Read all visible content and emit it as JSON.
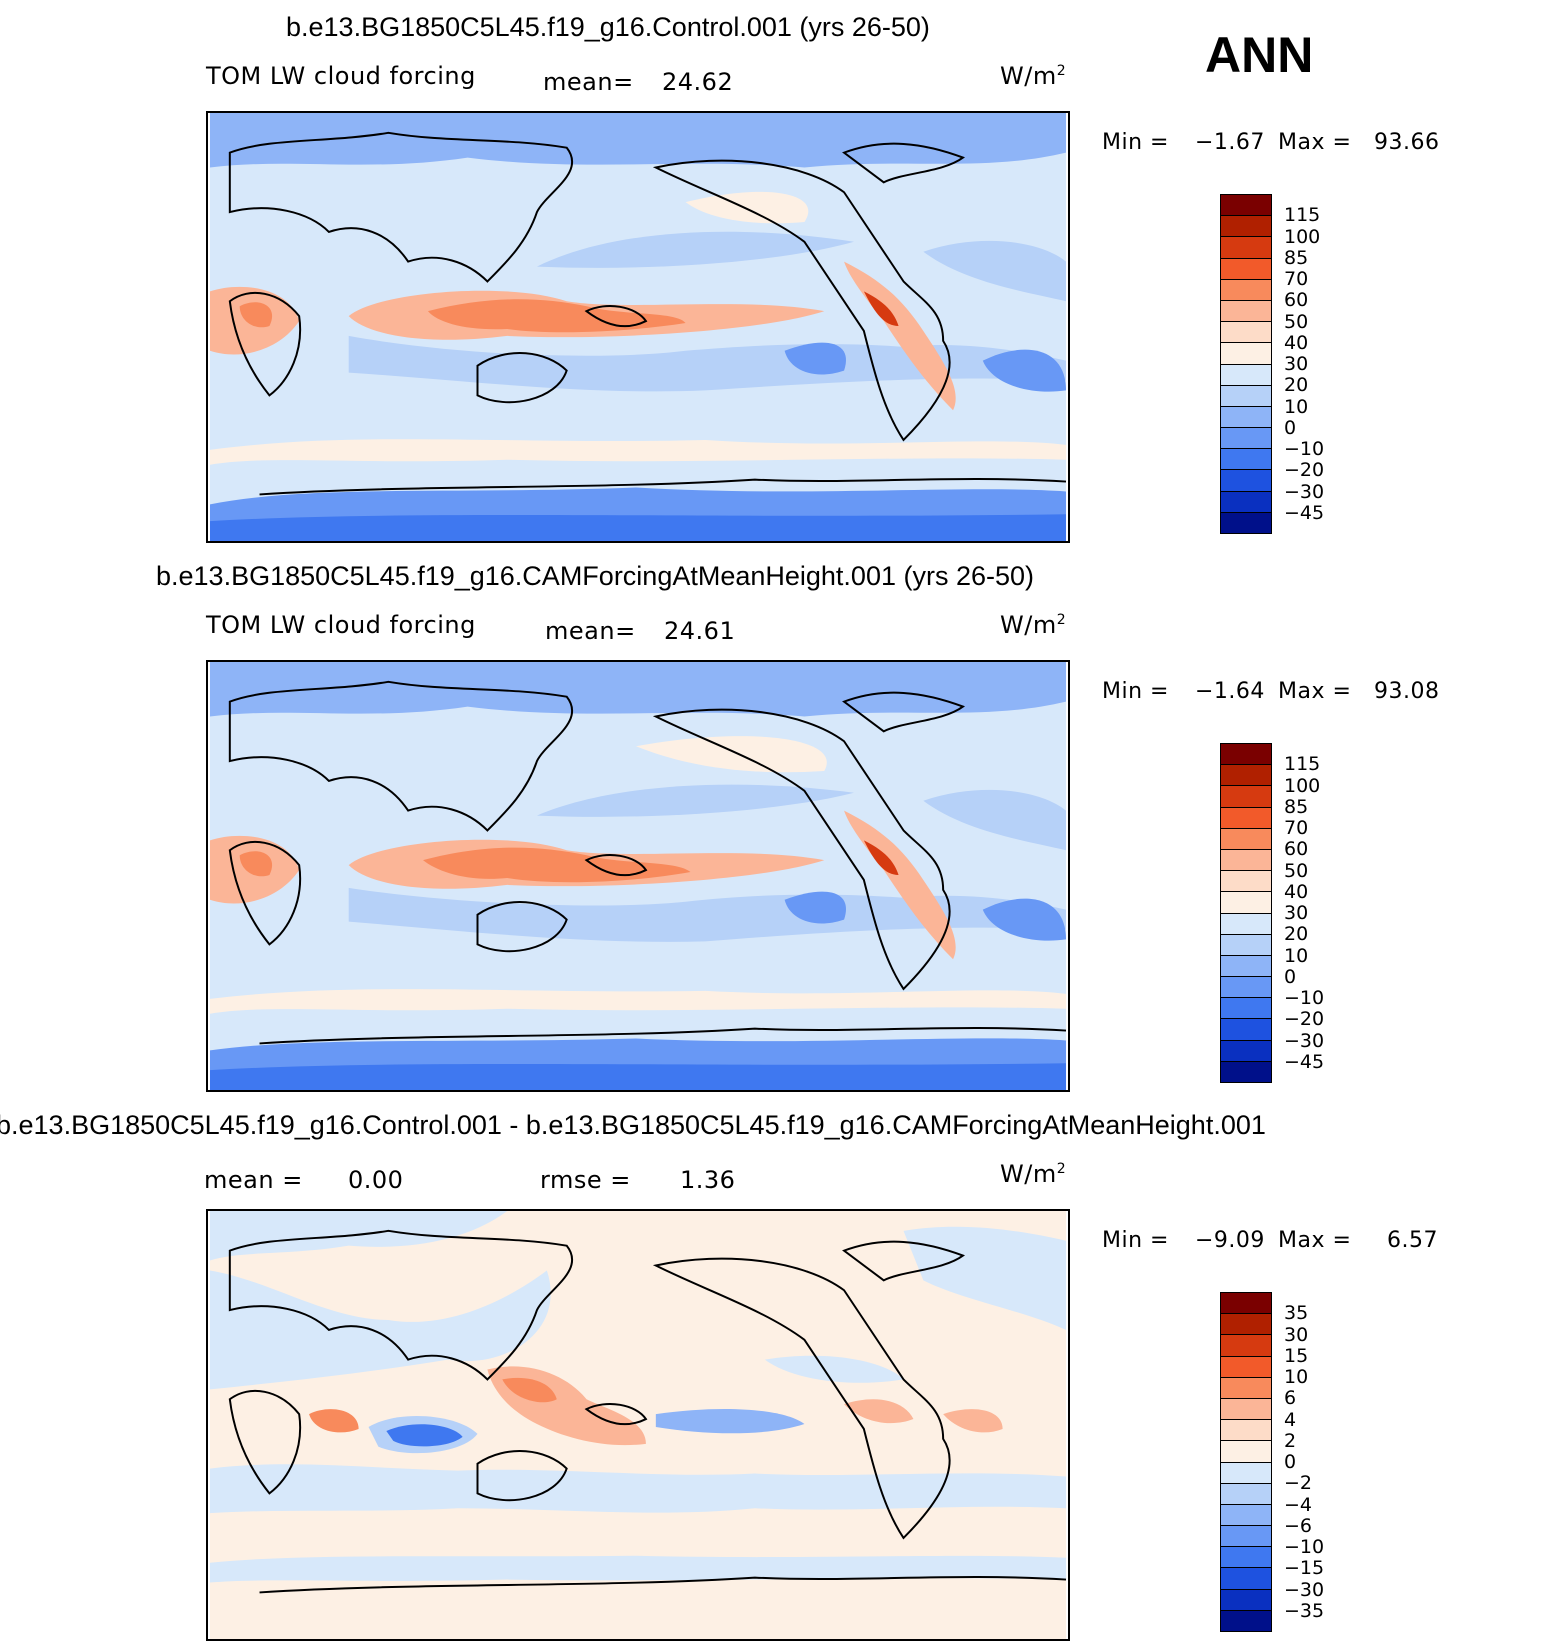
{
  "season": "ANN",
  "unit_label": "W/m",
  "unit_sup": "2",
  "panels": [
    {
      "title": "b.e13.BG1850C5L45.f19_g16.Control.001 (yrs 26-50)",
      "variable": "TOM LW cloud forcing",
      "stat1_label": "mean=",
      "stat1_value": "24.62",
      "stat2_label": "",
      "stat2_value": "",
      "min_label": "Min =",
      "min_value": "−1.67",
      "max_label": "Max =",
      "max_value": "93.66",
      "levels": [
        "115",
        "100",
        "85",
        "70",
        "60",
        "50",
        "40",
        "30",
        "20",
        "10",
        "0",
        "−10",
        "−20",
        "−30",
        "−45"
      ],
      "colors": [
        "#7a0000",
        "#b02000",
        "#d63a10",
        "#f25a2a",
        "#f88a5c",
        "#fbb597",
        "#fddcc8",
        "#fdf0e4",
        "#d7e8fa",
        "#b6d1f8",
        "#8eb4f7",
        "#6898f5",
        "#3f78f0",
        "#1e52e0",
        "#0a30c0",
        "#00108a"
      ]
    },
    {
      "title": "b.e13.BG1850C5L45.f19_g16.CAMForcingAtMeanHeight.001 (yrs 26-50)",
      "variable": "TOM LW cloud forcing",
      "stat1_label": "mean=",
      "stat1_value": "24.61",
      "stat2_label": "",
      "stat2_value": "",
      "min_label": "Min =",
      "min_value": "−1.64",
      "max_label": "Max =",
      "max_value": "93.08",
      "levels": [
        "115",
        "100",
        "85",
        "70",
        "60",
        "50",
        "40",
        "30",
        "20",
        "10",
        "0",
        "−10",
        "−20",
        "−30",
        "−45"
      ],
      "colors": [
        "#7a0000",
        "#b02000",
        "#d63a10",
        "#f25a2a",
        "#f88a5c",
        "#fbb597",
        "#fddcc8",
        "#fdf0e4",
        "#d7e8fa",
        "#b6d1f8",
        "#8eb4f7",
        "#6898f5",
        "#3f78f0",
        "#1e52e0",
        "#0a30c0",
        "#00108a"
      ]
    },
    {
      "title": "b.e13.BG1850C5L45.f19_g16.Control.001 - b.e13.BG1850C5L45.f19_g16.CAMForcingAtMeanHeight.001",
      "variable": "",
      "stat1_label": "mean =",
      "stat1_value": "0.00",
      "stat2_label": "rmse =",
      "stat2_value": "1.36",
      "min_label": "Min =",
      "min_value": "−9.09",
      "max_label": "Max =",
      "max_value": "6.57",
      "levels": [
        "35",
        "30",
        "15",
        "10",
        "6",
        "4",
        "2",
        "0",
        "−2",
        "−4",
        "−6",
        "−10",
        "−15",
        "−30",
        "−35"
      ],
      "colors": [
        "#7a0000",
        "#b02000",
        "#d63a10",
        "#f25a2a",
        "#f88a5c",
        "#fbb597",
        "#fddcc8",
        "#fdf0e4",
        "#d7e8fa",
        "#b6d1f8",
        "#8eb4f7",
        "#6898f5",
        "#3f78f0",
        "#1e52e0",
        "#0a30c0",
        "#00108a"
      ]
    }
  ]
}
